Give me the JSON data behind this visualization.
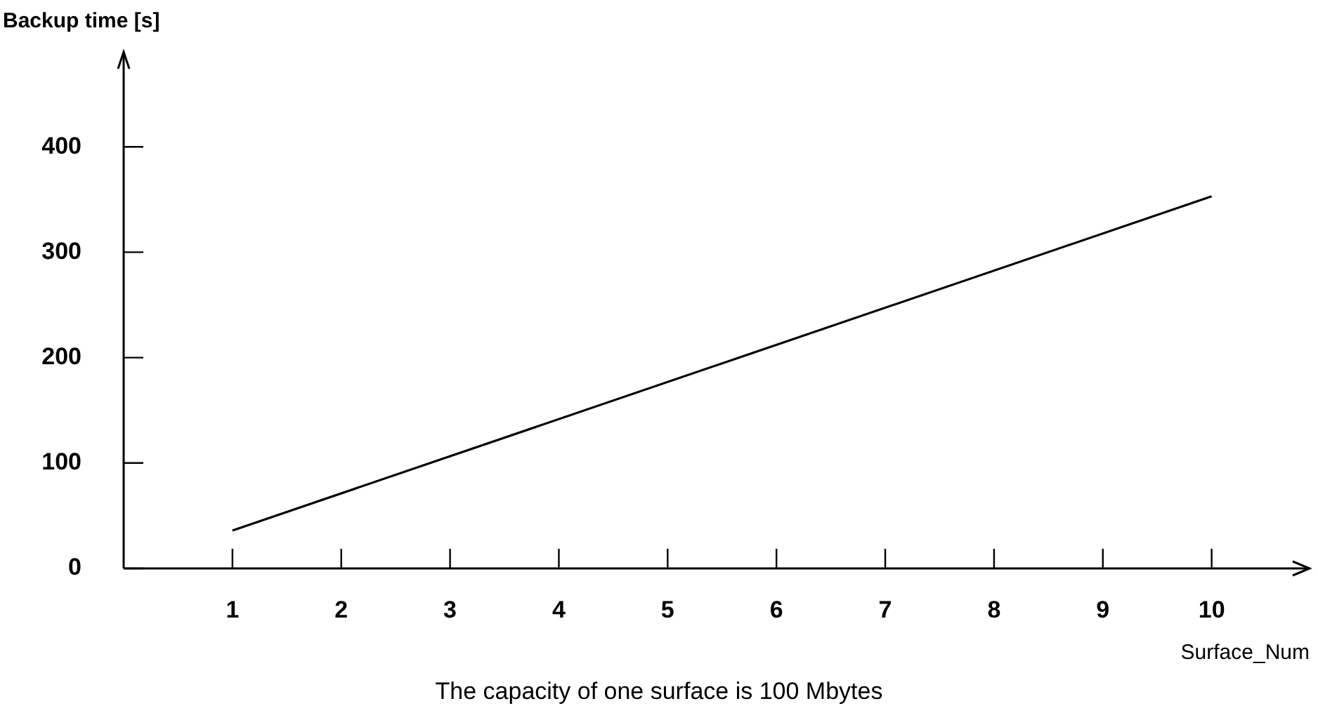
{
  "chart_data": {
    "type": "line",
    "ylabel": "Backup time [s]",
    "xlabel": "Surface_Num",
    "annotations": [
      "The capacity of one surface is 100 Mbytes"
    ],
    "series": [
      {
        "color": "#000000",
        "x": [
          1,
          10
        ],
        "values": [
          36,
          353
        ]
      }
    ],
    "xlim": [
      0,
      10.9
    ],
    "xticks": [
      1,
      2,
      3,
      4,
      5,
      6,
      7,
      8,
      9,
      10
    ],
    "ylim": [
      0,
      490
    ],
    "yticks": [
      0,
      100,
      200,
      300,
      400
    ],
    "marker": "none",
    "line_style": "solid"
  }
}
